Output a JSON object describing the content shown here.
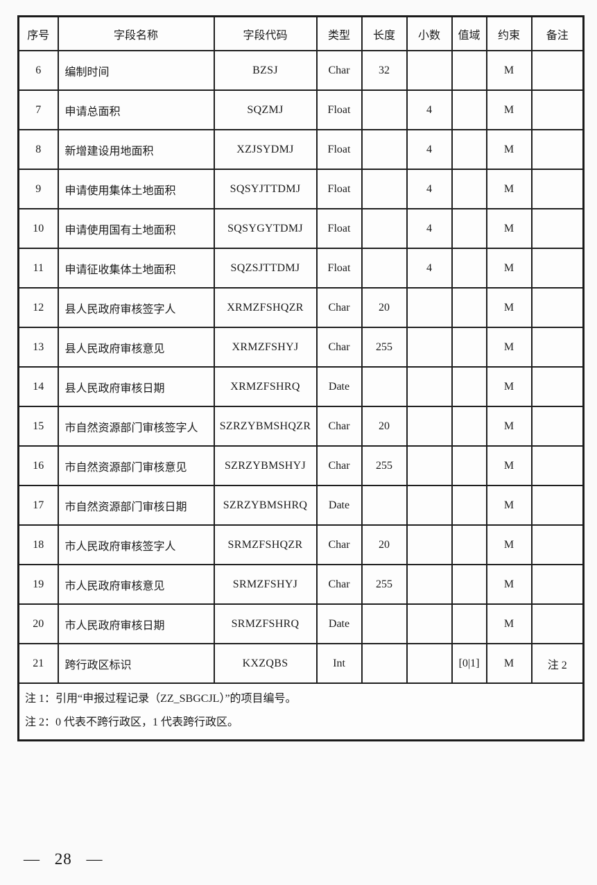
{
  "colors": {
    "border": "#1f1f1f",
    "text": "#1a1a1a",
    "background": "#fafafa"
  },
  "document": {
    "table": {
      "headers": [
        "序号",
        "字段名称",
        "字段代码",
        "类型",
        "长度",
        "小数",
        "值域",
        "约束",
        "备注"
      ],
      "rows": [
        {
          "no": "6",
          "name": "编制时间",
          "code": "BZSJ",
          "type": "Char",
          "length": "32",
          "decimal": "",
          "range": "",
          "constraint": "M",
          "remark": ""
        },
        {
          "no": "7",
          "name": "申请总面积",
          "code": "SQZMJ",
          "type": "Float",
          "length": "",
          "decimal": "4",
          "range": "",
          "constraint": "M",
          "remark": ""
        },
        {
          "no": "8",
          "name": "新增建设用地面积",
          "code": "XZJSYDMJ",
          "type": "Float",
          "length": "",
          "decimal": "4",
          "range": "",
          "constraint": "M",
          "remark": ""
        },
        {
          "no": "9",
          "name": "申请使用集体土地面积",
          "code": "SQSYJTTDMJ",
          "type": "Float",
          "length": "",
          "decimal": "4",
          "range": "",
          "constraint": "M",
          "remark": ""
        },
        {
          "no": "10",
          "name": "申请使用国有土地面积",
          "code": "SQSYGYTDMJ",
          "type": "Float",
          "length": "",
          "decimal": "4",
          "range": "",
          "constraint": "M",
          "remark": ""
        },
        {
          "no": "11",
          "name": "申请征收集体土地面积",
          "code": "SQZSJTTDMJ",
          "type": "Float",
          "length": "",
          "decimal": "4",
          "range": "",
          "constraint": "M",
          "remark": ""
        },
        {
          "no": "12",
          "name": "县人民政府审核签字人",
          "code": "XRMZFSHQZR",
          "type": "Char",
          "length": "20",
          "decimal": "",
          "range": "",
          "constraint": "M",
          "remark": ""
        },
        {
          "no": "13",
          "name": "县人民政府审核意见",
          "code": "XRMZFSHYJ",
          "type": "Char",
          "length": "255",
          "decimal": "",
          "range": "",
          "constraint": "M",
          "remark": ""
        },
        {
          "no": "14",
          "name": "县人民政府审核日期",
          "code": "XRMZFSHRQ",
          "type": "Date",
          "length": "",
          "decimal": "",
          "range": "",
          "constraint": "M",
          "remark": ""
        },
        {
          "no": "15",
          "name": "市自然资源部门审核签字人",
          "code": "SZRZYBMSHQZR",
          "type": "Char",
          "length": "20",
          "decimal": "",
          "range": "",
          "constraint": "M",
          "remark": ""
        },
        {
          "no": "16",
          "name": "市自然资源部门审核意见",
          "code": "SZRZYBMSHYJ",
          "type": "Char",
          "length": "255",
          "decimal": "",
          "range": "",
          "constraint": "M",
          "remark": ""
        },
        {
          "no": "17",
          "name": "市自然资源部门审核日期",
          "code": "SZRZYBMSHRQ",
          "type": "Date",
          "length": "",
          "decimal": "",
          "range": "",
          "constraint": "M",
          "remark": ""
        },
        {
          "no": "18",
          "name": "市人民政府审核签字人",
          "code": "SRMZFSHQZR",
          "type": "Char",
          "length": "20",
          "decimal": "",
          "range": "",
          "constraint": "M",
          "remark": ""
        },
        {
          "no": "19",
          "name": "市人民政府审核意见",
          "code": "SRMZFSHYJ",
          "type": "Char",
          "length": "255",
          "decimal": "",
          "range": "",
          "constraint": "M",
          "remark": ""
        },
        {
          "no": "20",
          "name": "市人民政府审核日期",
          "code": "SRMZFSHRQ",
          "type": "Date",
          "length": "",
          "decimal": "",
          "range": "",
          "constraint": "M",
          "remark": ""
        },
        {
          "no": "21",
          "name": "跨行政区标识",
          "code": "KXZQBS",
          "type": "Int",
          "length": "",
          "decimal": "",
          "range": "[0|1]",
          "constraint": "M",
          "remark": "注 2"
        }
      ],
      "notes": [
        "注 1：引用“申报过程记录（ZZ_SBGCJL）”的项目编号。",
        "注 2：0 代表不跨行政区，1 代表跨行政区。"
      ]
    },
    "footer": {
      "page_text": "— 28 —"
    }
  }
}
